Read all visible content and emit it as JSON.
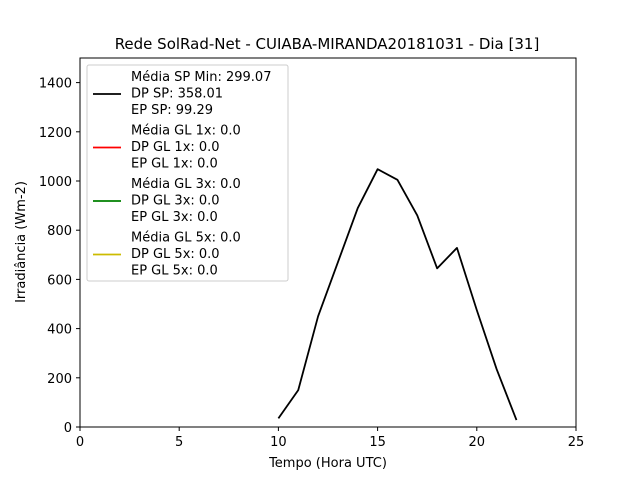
{
  "chart_data": {
    "type": "line",
    "title": "Rede SolRad-Net - CUIABA-MIRANDA20181031 - Dia [31]",
    "xlabel": "Tempo (Hora UTC)",
    "ylabel": "Irradiância (Wm-2)",
    "xlim": [
      0,
      25
    ],
    "ylim": [
      0,
      1500
    ],
    "xticks": [
      0,
      5,
      10,
      15,
      20,
      25
    ],
    "yticks": [
      0,
      200,
      400,
      600,
      800,
      1000,
      1200,
      1400
    ],
    "grid": false,
    "legend_position": "top-left",
    "series": [
      {
        "color": "#000000",
        "x": [
          10,
          11,
          12,
          13,
          14,
          15,
          16,
          17,
          18,
          19,
          20,
          21,
          22
        ],
        "y": [
          35,
          150,
          450,
          670,
          890,
          1048,
          1005,
          860,
          645,
          728,
          475,
          235,
          28
        ]
      }
    ],
    "legend": [
      {
        "color": "#000000",
        "lines": [
          "Média SP Min: 299.07",
          "DP SP: 358.01",
          "EP SP: 99.29"
        ]
      },
      {
        "color": "#ff0000",
        "lines": [
          "Média GL 1x: 0.0",
          "DP GL 1x: 0.0",
          "EP GL 1x: 0.0"
        ]
      },
      {
        "color": "#008000",
        "lines": [
          "Média GL 3x: 0.0",
          "DP GL 3x: 0.0",
          "EP GL 3x: 0.0"
        ]
      },
      {
        "color": "#ccbb00",
        "lines": [
          "Média GL 5x: 0.0",
          "DP GL 5x: 0.0",
          "EP GL 5x: 0.0"
        ]
      }
    ]
  }
}
